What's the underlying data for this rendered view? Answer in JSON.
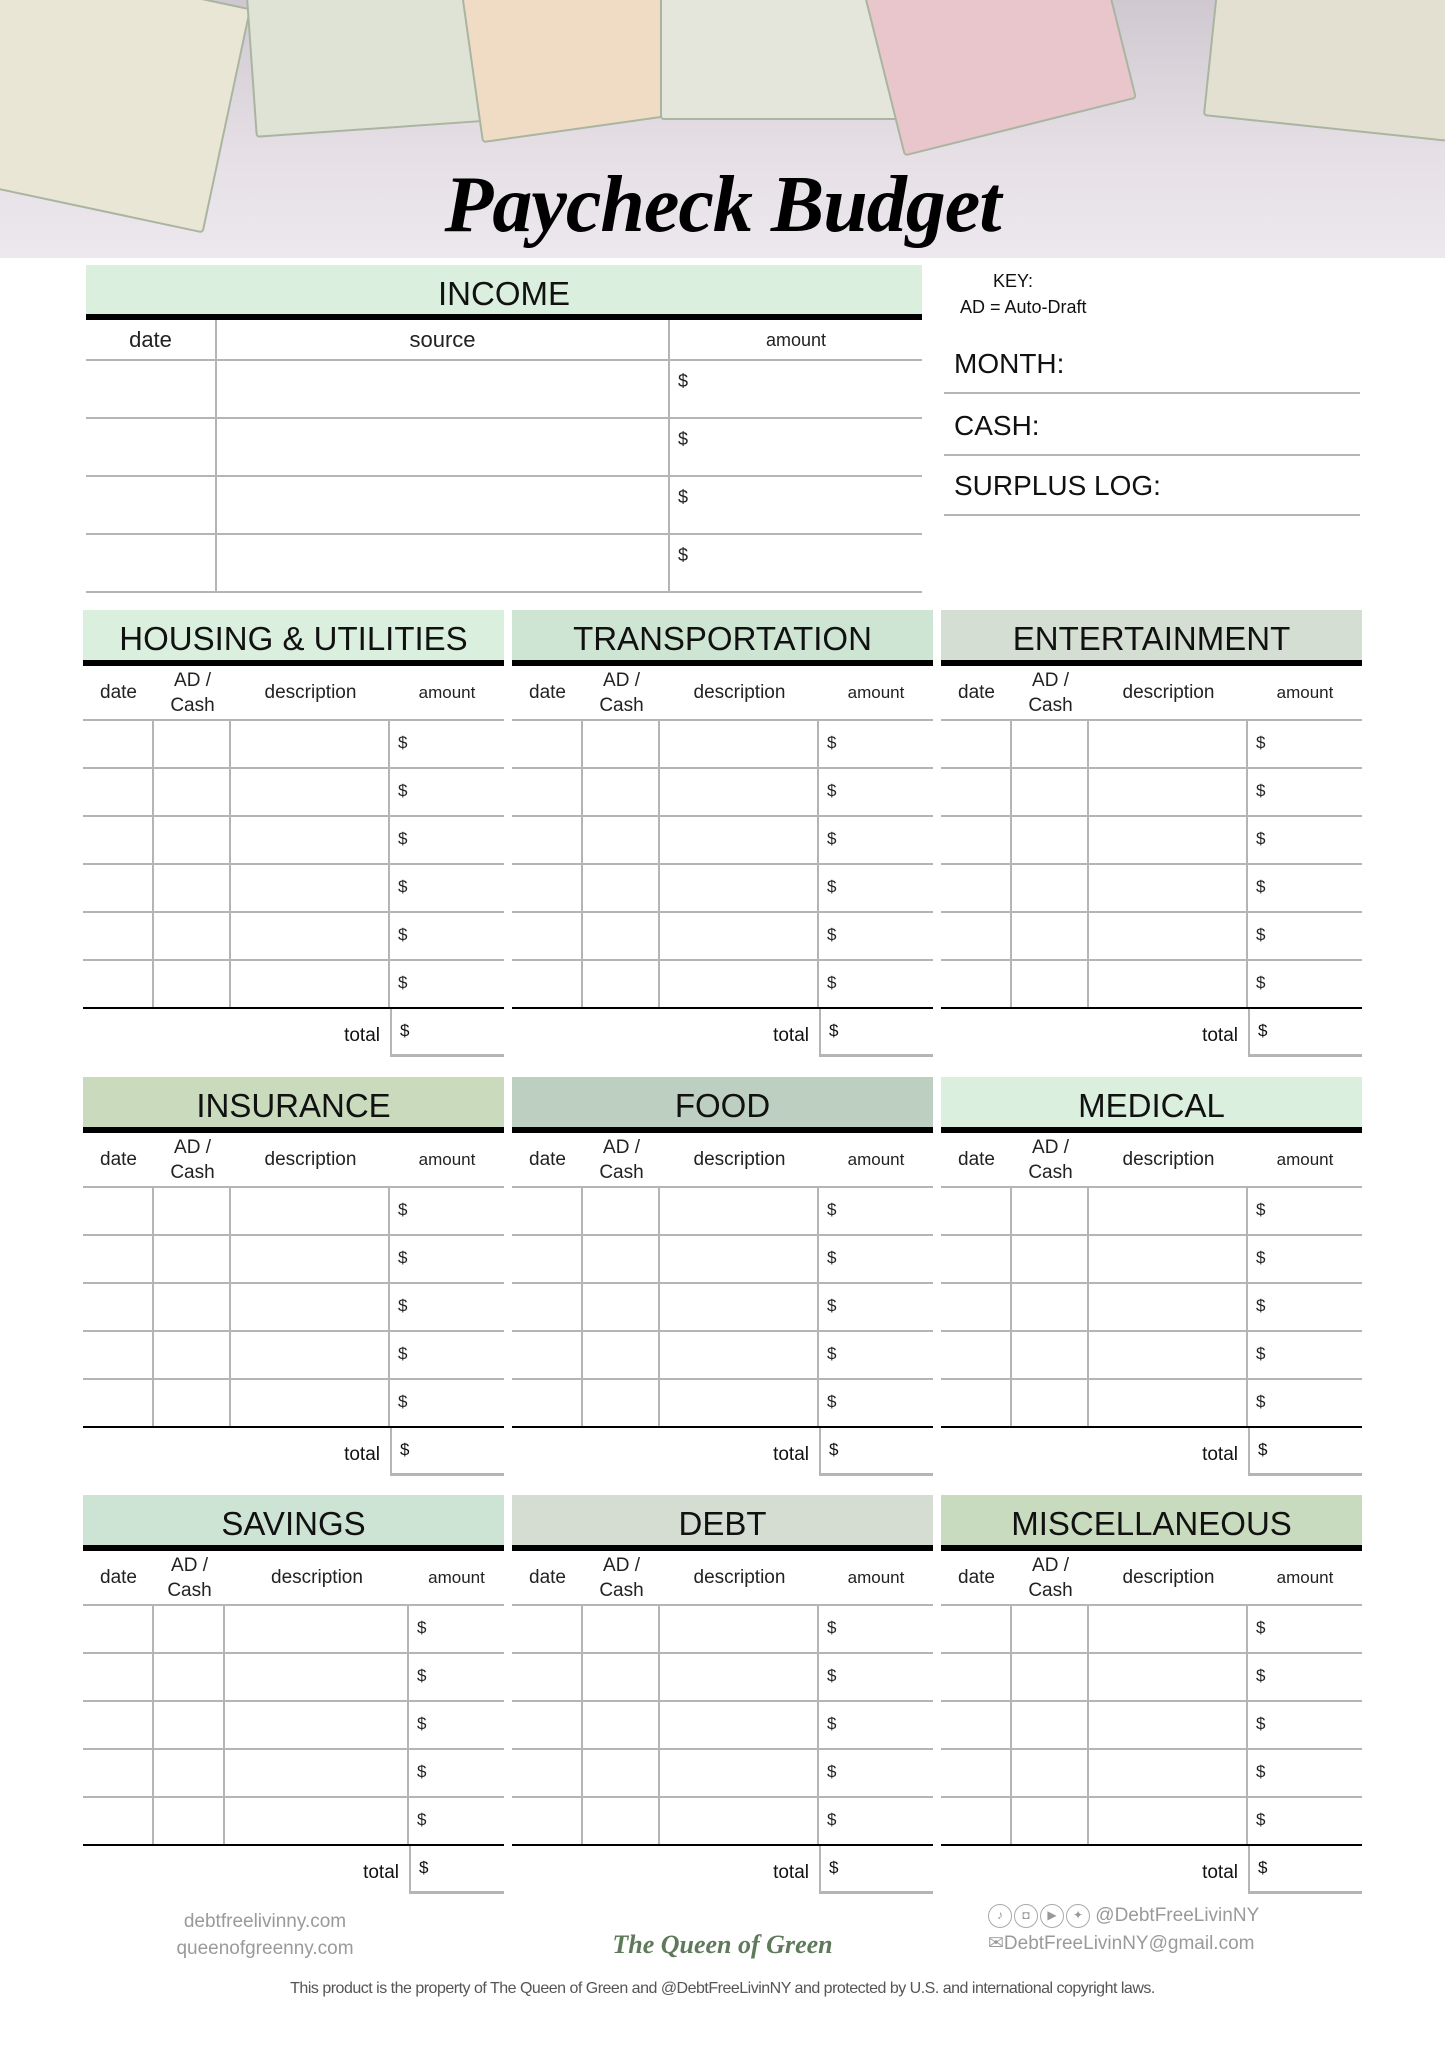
{
  "header": {
    "title": "Paycheck Budget"
  },
  "income": {
    "title": "INCOME",
    "columns": [
      "date",
      "source",
      "amount"
    ],
    "rows": [
      "$",
      "$",
      "$",
      "$"
    ],
    "color": "#daefdd"
  },
  "key": {
    "label": "KEY:",
    "text": "AD = Auto-Draft"
  },
  "fields": [
    "MONTH:",
    "CASH:",
    "SURPLUS LOG:"
  ],
  "columns": [
    "date",
    "AD / Cash",
    "description",
    "amount"
  ],
  "total_label": "total",
  "currency": "$",
  "sections": [
    {
      "title": "HOUSING & UTILITIES",
      "color": "#daefdd",
      "rows": 6
    },
    {
      "title": "TRANSPORTATION",
      "color": "#cfe5d3",
      "rows": 6
    },
    {
      "title": "ENTERTAINMENT",
      "color": "#d5ded3",
      "rows": 6
    },
    {
      "title": "INSURANCE",
      "color": "#c9dabd",
      "rows": 5
    },
    {
      "title": "FOOD",
      "color": "#bdcfc1",
      "rows": 5
    },
    {
      "title": "MEDICAL",
      "color": "#daefdd",
      "rows": 5
    },
    {
      "title": "SAVINGS",
      "color": "#cde3d3",
      "rows": 5
    },
    {
      "title": "DEBT",
      "color": "#d5ddd3",
      "rows": 5
    },
    {
      "title": "MISCELLANEOUS",
      "color": "#c9dbbe",
      "rows": 5
    }
  ],
  "footer": {
    "site1": "debtfreelivinny.com",
    "site2": "queenofgreenny.com",
    "brand": "The Queen of Green",
    "brand_color": "#5e7a5a",
    "handle": "@DebtFreeLivinNY",
    "email": "DebtFreeLivinNY@gmail.com",
    "social_icons": [
      "tiktok-icon",
      "instagram-icon",
      "youtube-icon",
      "twitter-icon"
    ],
    "copyright": "This product is the property of The Queen of Green and @DebtFreeLivinNY and protected by U.S. and international copyright laws."
  }
}
